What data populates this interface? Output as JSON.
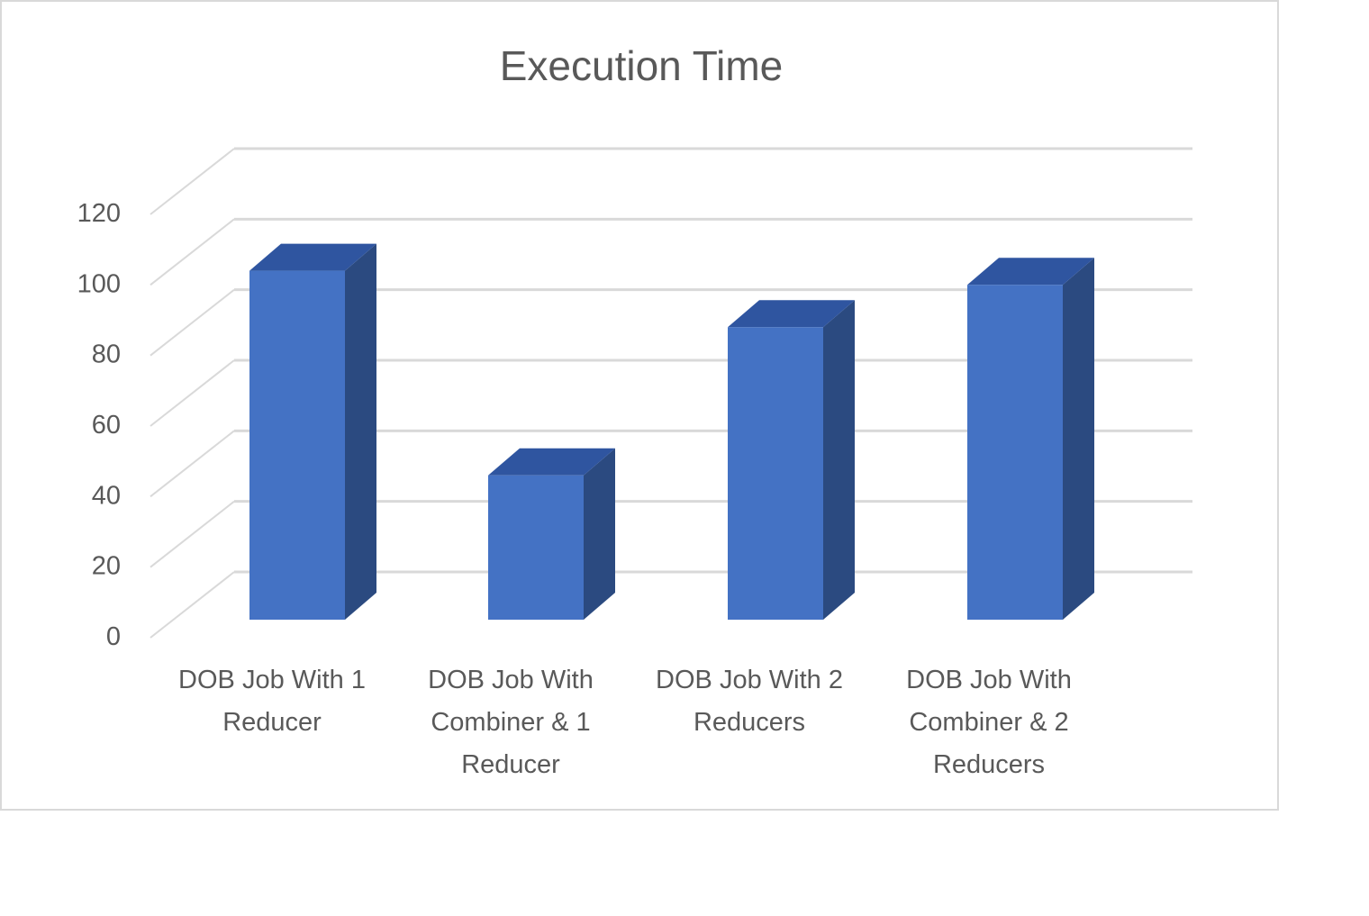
{
  "chart_data": {
    "type": "bar",
    "style": "3d-column",
    "title": "Execution Time",
    "xlabel": "",
    "ylabel": "",
    "ylim": [
      0,
      120
    ],
    "yticks": [
      "0",
      "20",
      "40",
      "60",
      "80",
      "100",
      "120"
    ],
    "categories": [
      [
        "DOB Job With 1",
        "Reducer"
      ],
      [
        "DOB Job With",
        "Combiner & 1",
        "Reducer"
      ],
      [
        "DOB Job With 2",
        "Reducers"
      ],
      [
        "DOB Job With",
        "Combiner & 2",
        "Reducers"
      ]
    ],
    "series": [
      {
        "values": [
          103,
          45,
          87,
          99
        ]
      }
    ],
    "grid": true,
    "legend": "none",
    "colors": {
      "bar_front": "#4472c4",
      "bar_side": "#2b4a80",
      "bar_top": "#2f55a0",
      "grid": "#d9d9d9",
      "text": "#595959"
    }
  }
}
